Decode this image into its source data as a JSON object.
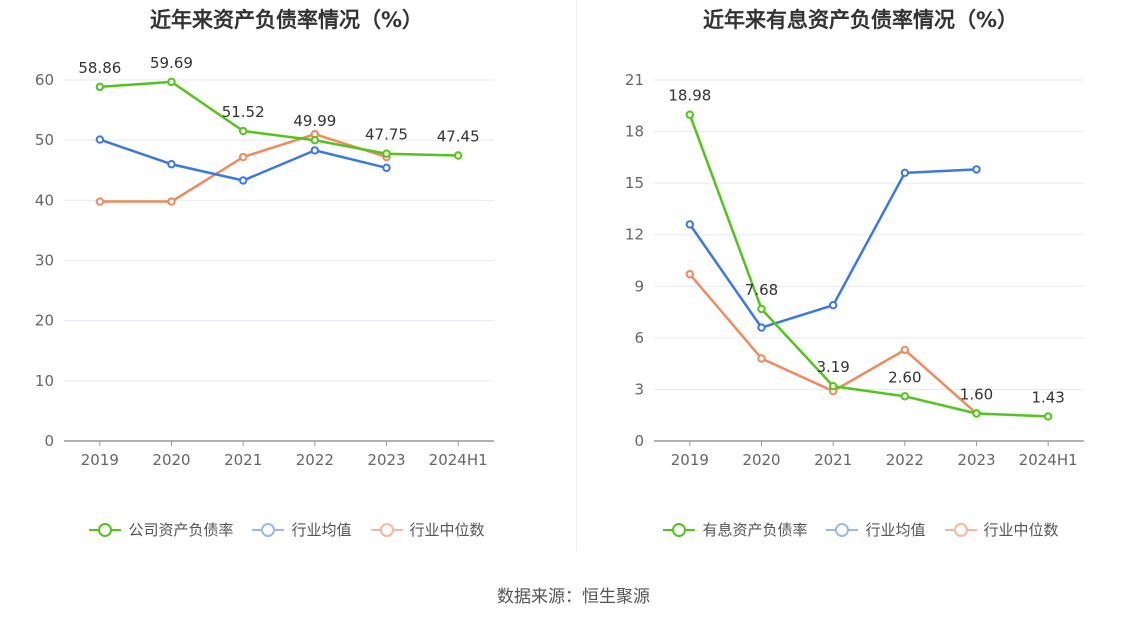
{
  "source": "数据来源：恒生聚源",
  "chart_data": [
    {
      "type": "line",
      "title": "近年来资产负债率情况（%）",
      "categories": [
        "2019",
        "2020",
        "2021",
        "2022",
        "2023",
        "2024H1"
      ],
      "ylim": [
        0,
        60
      ],
      "yticks": [
        0,
        10,
        20,
        30,
        40,
        50,
        60
      ],
      "grid": true,
      "legend_position": "bottom",
      "series": [
        {
          "name": "公司资产负债率",
          "color": "#52c41a",
          "values": [
            58.86,
            59.69,
            51.52,
            49.99,
            47.75,
            47.45
          ],
          "labels": [
            "58.86",
            "59.69",
            "51.52",
            "49.99",
            "47.75",
            "47.45"
          ]
        },
        {
          "name": "行业均值",
          "color": "#3b78e7",
          "values": [
            50.1,
            46.0,
            43.3,
            48.3,
            45.4,
            null
          ]
        },
        {
          "name": "行业中位数",
          "color": "#f08a5d",
          "values": [
            39.8,
            39.8,
            47.2,
            51.0,
            47.2,
            null
          ]
        }
      ]
    },
    {
      "type": "line",
      "title": "近年来有息资产负债率情况（%）",
      "categories": [
        "2019",
        "2020",
        "2021",
        "2022",
        "2023",
        "2024H1"
      ],
      "ylim": [
        0,
        21
      ],
      "yticks": [
        0,
        3,
        6,
        9,
        12,
        15,
        18,
        21
      ],
      "grid": true,
      "legend_position": "bottom",
      "series": [
        {
          "name": "有息资产负债率",
          "color": "#52c41a",
          "values": [
            18.98,
            7.68,
            3.19,
            2.6,
            1.6,
            1.43
          ],
          "labels": [
            "18.98",
            "7.68",
            "3.19",
            "2.60",
            "1.60",
            "1.43"
          ]
        },
        {
          "name": "行业均值",
          "color": "#3b78e7",
          "values": [
            12.6,
            6.6,
            7.9,
            15.6,
            15.8,
            null
          ]
        },
        {
          "name": "行业中位数",
          "color": "#f08a5d",
          "values": [
            9.7,
            4.8,
            2.9,
            5.3,
            1.6,
            null
          ]
        }
      ]
    }
  ]
}
